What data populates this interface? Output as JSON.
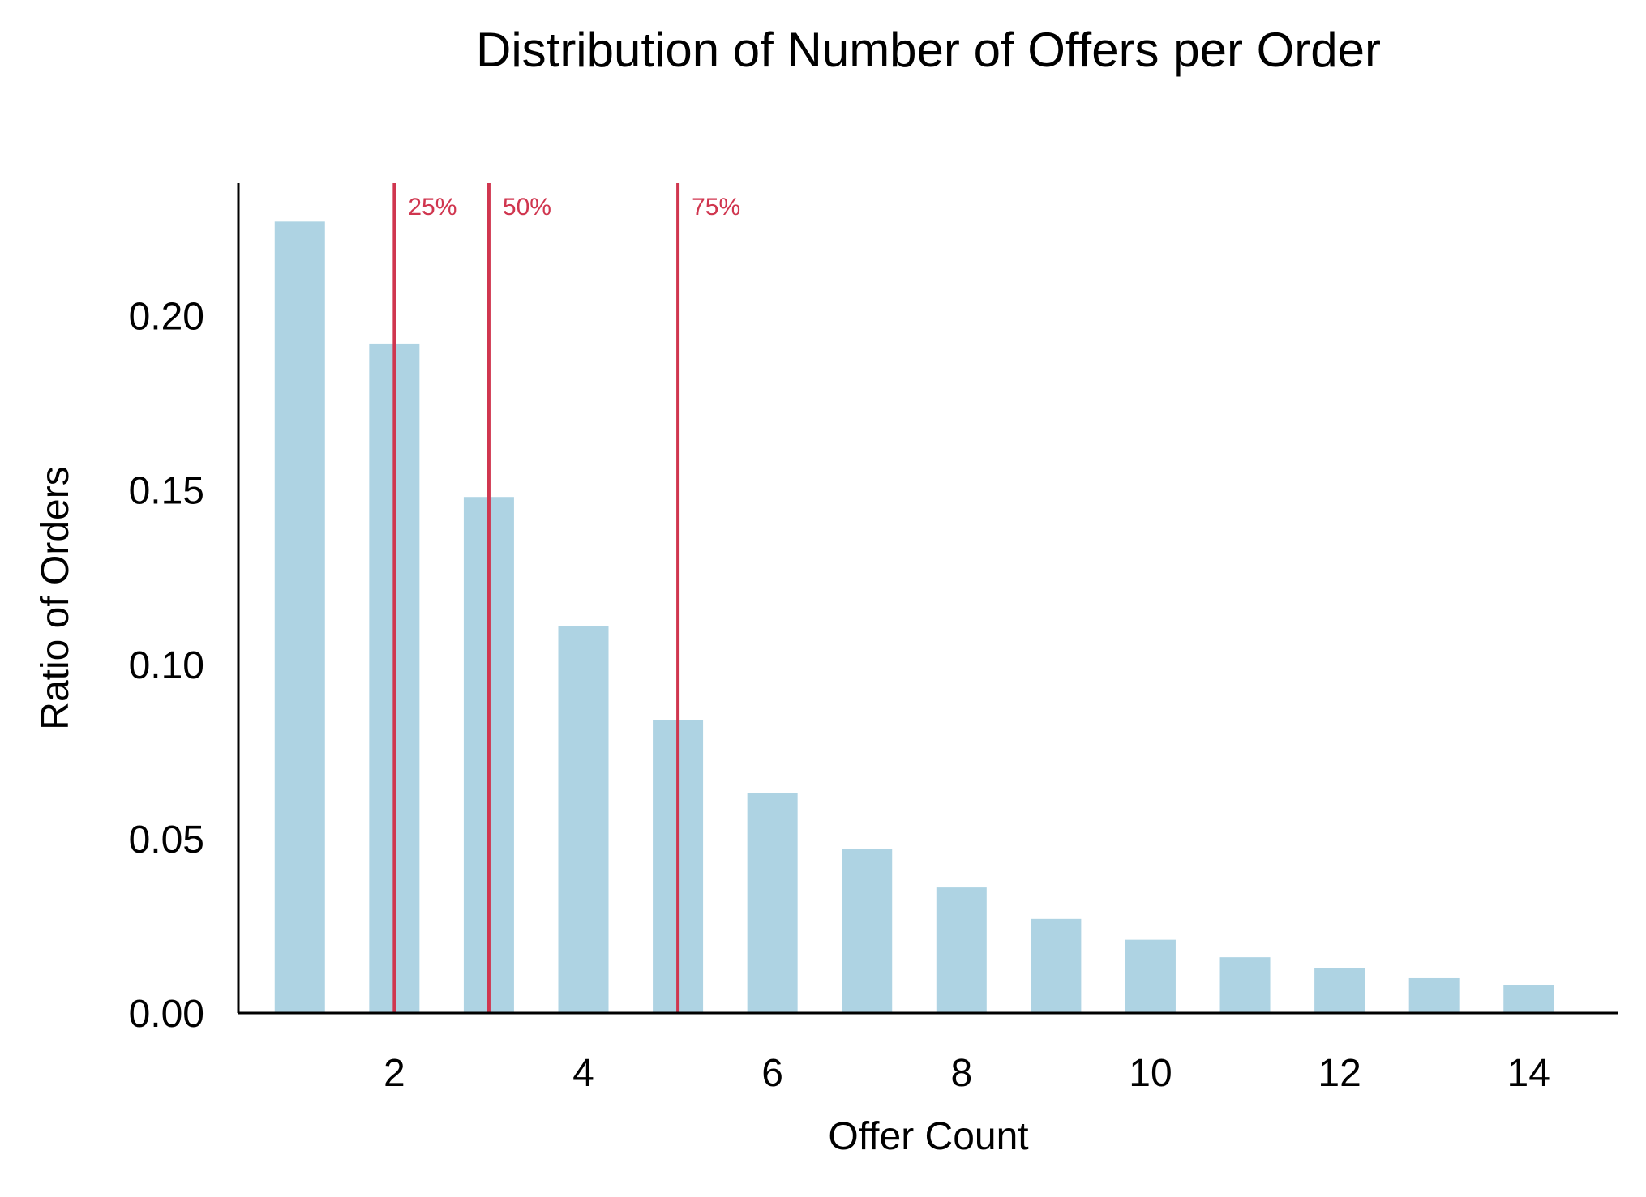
{
  "chart_data": {
    "type": "bar",
    "title": "Distribution of Number of Offers per Order",
    "xlabel": "Offer Count",
    "ylabel": "Ratio of Orders",
    "x": [
      1,
      2,
      3,
      4,
      5,
      6,
      7,
      8,
      9,
      10,
      11,
      12,
      13,
      14
    ],
    "values": [
      0.227,
      0.192,
      0.148,
      0.111,
      0.084,
      0.063,
      0.047,
      0.036,
      0.027,
      0.021,
      0.016,
      0.013,
      0.01,
      0.008
    ],
    "xlim": [
      0.35,
      14.95
    ],
    "ylim": [
      0,
      0.238
    ],
    "xticks": [
      2,
      4,
      6,
      8,
      10,
      12,
      14
    ],
    "yticks": [
      0.0,
      0.05,
      0.1,
      0.15,
      0.2
    ],
    "ytick_labels": [
      "0.00",
      "0.05",
      "0.10",
      "0.15",
      "0.20"
    ],
    "grid": false,
    "bar_color": "#aed3e3",
    "percentile_lines": [
      {
        "label": "25%",
        "x": 2.0
      },
      {
        "label": "50%",
        "x": 3.0
      },
      {
        "label": "75%",
        "x": 5.0
      }
    ],
    "line_color": "#d0364f"
  }
}
